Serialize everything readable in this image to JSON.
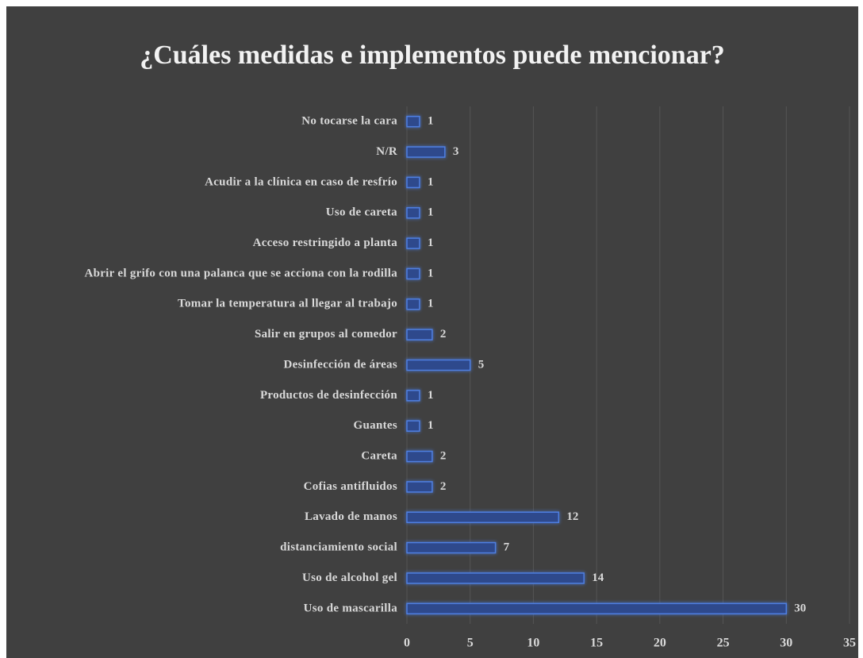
{
  "chart_data": {
    "type": "bar",
    "orientation": "horizontal",
    "title": "¿Cuáles medidas e implementos puede mencionar?",
    "categories": [
      "No tocarse la cara",
      "N/R",
      "Acudir a la clínica en caso de resfrío",
      "Uso de careta",
      "Acceso restringido a planta",
      "Abrir el grifo con una palanca que se acciona con la rodilla",
      "Tomar la temperatura al llegar al trabajo",
      "Salir en grupos al comedor",
      "Desinfección de áreas",
      "Productos de desinfección",
      "Guantes",
      "Careta",
      "Cofias antifluidos",
      "Lavado de manos",
      "distanciamiento social",
      "Uso de alcohol gel",
      "Uso de mascarilla"
    ],
    "values": [
      1,
      3,
      1,
      1,
      1,
      1,
      1,
      2,
      5,
      1,
      1,
      2,
      2,
      12,
      7,
      14,
      30
    ],
    "color": "#2e4a8c",
    "xlim": [
      0,
      35
    ],
    "xticks": [
      0,
      5,
      10,
      15,
      20,
      25,
      30,
      35
    ],
    "grid": true
  }
}
